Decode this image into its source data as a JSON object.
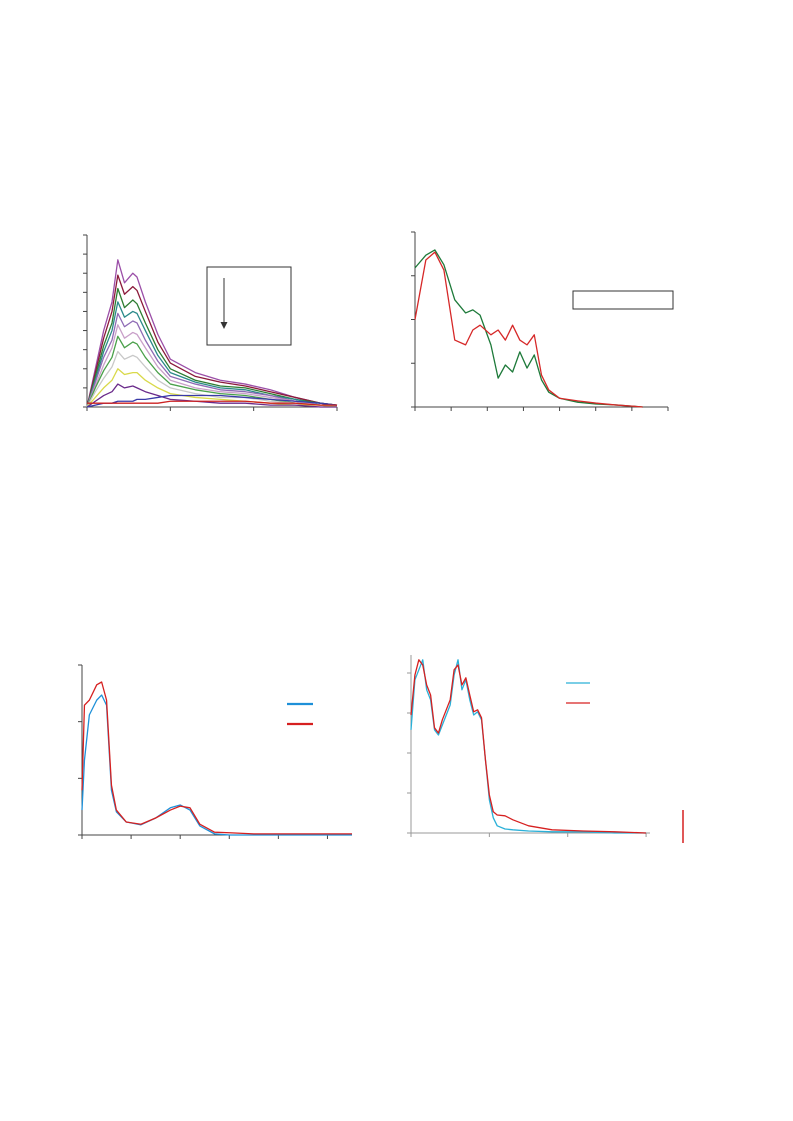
{
  "chart_data": [
    {
      "type": "line",
      "x": [
        0,
        0.1,
        0.2,
        0.3,
        0.37,
        0.45,
        0.55,
        0.6,
        0.7,
        0.85,
        1.0,
        1.3,
        1.6,
        1.9,
        2.2,
        2.5,
        2.8,
        3.0
      ],
      "xlim": [
        0,
        3
      ],
      "xticks": [
        0,
        1,
        2,
        3
      ],
      "ylim": [
        0,
        90
      ],
      "yticks": [
        0,
        10,
        20,
        30,
        40,
        50,
        60,
        70,
        80,
        90
      ],
      "series": [
        {
          "color": "#9b4fa8",
          "values": [
            0,
            20,
            40,
            55,
            77,
            65,
            70,
            68,
            55,
            38,
            25,
            18,
            14,
            12,
            9,
            5,
            2,
            1
          ]
        },
        {
          "color": "#8b1a3a",
          "values": [
            0,
            18,
            36,
            50,
            69,
            59,
            63,
            61,
            50,
            34,
            23,
            16,
            13,
            11,
            8,
            5,
            2,
            1
          ]
        },
        {
          "color": "#2e7d32",
          "values": [
            0,
            16,
            32,
            44,
            62,
            52,
            56,
            54,
            44,
            30,
            20,
            14,
            11,
            10,
            7,
            4,
            2,
            1
          ]
        },
        {
          "color": "#2a8a8a",
          "values": [
            0,
            14,
            29,
            40,
            55,
            47,
            50,
            49,
            40,
            27,
            18,
            13,
            10,
            9,
            6,
            4,
            1,
            1
          ]
        },
        {
          "color": "#8e6bb5",
          "values": [
            0,
            13,
            26,
            35,
            49,
            42,
            45,
            44,
            35,
            24,
            16,
            12,
            9,
            8,
            6,
            3,
            1,
            1
          ]
        },
        {
          "color": "#c9a0c9",
          "values": [
            0,
            11,
            22,
            31,
            43,
            36,
            39,
            38,
            31,
            21,
            14,
            10,
            8,
            7,
            5,
            3,
            1,
            1
          ]
        },
        {
          "color": "#4aa04a",
          "values": [
            0,
            10,
            19,
            26,
            37,
            31,
            34,
            33,
            26,
            18,
            12,
            9,
            7,
            6,
            4,
            2,
            1,
            0
          ]
        },
        {
          "color": "#c8c8c8",
          "values": [
            0,
            8,
            15,
            21,
            29,
            25,
            27,
            26,
            21,
            14,
            10,
            7,
            5,
            5,
            3,
            2,
            1,
            0
          ]
        },
        {
          "color": "#d9d94a",
          "values": [
            0,
            5,
            10,
            14,
            20,
            17,
            18,
            18,
            14,
            10,
            7,
            5,
            4,
            3,
            2,
            1,
            1,
            0
          ]
        },
        {
          "color": "#6a2a8a",
          "values": [
            0,
            3,
            6,
            8,
            12,
            10,
            11,
            10,
            8,
            6,
            4,
            3,
            2,
            2,
            1,
            1,
            0,
            0
          ]
        },
        {
          "color": "#3a3aa8",
          "values": [
            0,
            1,
            2,
            2,
            3,
            3,
            3,
            4,
            4,
            5,
            6,
            6,
            6,
            5,
            4,
            3,
            2,
            1
          ]
        },
        {
          "color": "#cc2222",
          "values": [
            2,
            2,
            2,
            2,
            2,
            2,
            2,
            2,
            2,
            2,
            3,
            3,
            3,
            3,
            2,
            2,
            1,
            1
          ]
        }
      ]
    },
    {
      "type": "line",
      "x": [
        0,
        0.3,
        0.55,
        0.8,
        1.1,
        1.4,
        1.6,
        1.8,
        2.1,
        2.3,
        2.5,
        2.7,
        2.9,
        3.1,
        3.3,
        3.5,
        3.7,
        4.0,
        4.5,
        5,
        5.5,
        6.0,
        6.3
      ],
      "xlim": [
        0,
        7
      ],
      "xticks": [
        0,
        1,
        2,
        3,
        4,
        5,
        6,
        7
      ],
      "ylim": [
        0,
        4
      ],
      "yticks": [
        0,
        1,
        2,
        3,
        4
      ],
      "series": [
        {
          "color": "#1e7a3a",
          "values": [
            3.18,
            3.47,
            3.59,
            3.25,
            2.45,
            2.15,
            2.22,
            2.1,
            1.42,
            0.66,
            0.96,
            0.8,
            1.26,
            0.89,
            1.19,
            0.62,
            0.34,
            0.2,
            0.11,
            0.07,
            0.05,
            0.02,
            0
          ]
        },
        {
          "color": "#d62828",
          "values": [
            2.0,
            3.36,
            3.54,
            3.13,
            1.53,
            1.42,
            1.76,
            1.87,
            1.65,
            1.76,
            1.53,
            1.87,
            1.53,
            1.42,
            1.65,
            0.73,
            0.39,
            0.2,
            0.14,
            0.09,
            0.05,
            0.02,
            0
          ]
        }
      ]
    },
    {
      "type": "line",
      "x": [
        0,
        0.05,
        0.15,
        0.3,
        0.4,
        0.5,
        0.6,
        0.7,
        0.9,
        1.2,
        1.5,
        1.8,
        2.0,
        2.2,
        2.4,
        2.7,
        3.0,
        3.5,
        4,
        5,
        5.5
      ],
      "xlim": [
        0,
        5.5
      ],
      "xticks": [
        0,
        1,
        2,
        3,
        4,
        5
      ],
      "ylim": [
        0,
        3
      ],
      "yticks": [
        0,
        1,
        2,
        3
      ],
      "series": [
        {
          "color": "#1e90d8",
          "values": [
            0.44,
            1.32,
            2.12,
            2.38,
            2.47,
            2.29,
            0.79,
            0.41,
            0.23,
            0.18,
            0.3,
            0.48,
            0.53,
            0.44,
            0.16,
            0.02,
            0,
            0,
            0,
            0,
            0
          ]
        },
        {
          "color": "#d62020",
          "values": [
            0.79,
            2.29,
            2.38,
            2.65,
            2.7,
            2.38,
            0.88,
            0.44,
            0.23,
            0.19,
            0.3,
            0.44,
            0.51,
            0.48,
            0.19,
            0.05,
            0.04,
            0.02,
            0.02,
            0.02,
            0.02
          ]
        }
      ]
    },
    {
      "type": "line",
      "x": [
        0,
        0.05,
        0.1,
        0.15,
        0.2,
        0.25,
        0.3,
        0.35,
        0.4,
        0.5,
        0.55,
        0.6,
        0.65,
        0.7,
        0.75,
        0.8,
        0.85,
        0.9,
        0.95,
        1.0,
        1.05,
        1.1,
        1.2,
        1.3,
        1.5,
        1.8,
        2.2,
        2.6,
        3.0
      ],
      "xlim": [
        0,
        3.05
      ],
      "xticks": [
        0,
        1,
        2,
        3
      ],
      "ylim": [
        0,
        4.45
      ],
      "yticks": [
        0,
        1,
        2,
        3,
        4
      ],
      "series": [
        {
          "color": "#2ab0d8",
          "values": [
            2.58,
            3.83,
            4.08,
            4.33,
            3.58,
            3.33,
            2.58,
            2.45,
            2.7,
            3.2,
            3.95,
            4.33,
            3.58,
            3.83,
            3.33,
            2.95,
            3.03,
            2.83,
            1.83,
            0.83,
            0.38,
            0.18,
            0.1,
            0.08,
            0.05,
            0.03,
            0.03,
            0,
            0
          ]
        },
        {
          "color": "#d62020",
          "values": [
            2.95,
            3.95,
            4.33,
            4.2,
            3.7,
            3.45,
            2.63,
            2.5,
            2.83,
            3.33,
            4.08,
            4.2,
            3.7,
            3.88,
            3.45,
            3.03,
            3.08,
            2.88,
            1.83,
            0.95,
            0.53,
            0.45,
            0.43,
            0.33,
            0.18,
            0.08,
            0.05,
            0.03,
            0
          ]
        }
      ]
    }
  ]
}
